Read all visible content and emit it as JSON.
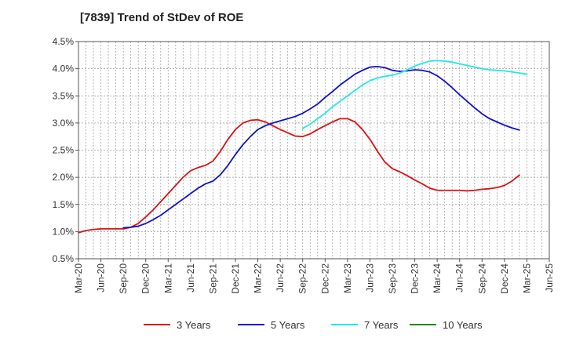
{
  "chart_data": {
    "type": "line",
    "title": "[7839]  Trend of StDev of ROE",
    "xlabel": "",
    "ylabel": "",
    "x_ticks": [
      "Mar-20",
      "Jun-20",
      "Sep-20",
      "Dec-20",
      "Mar-21",
      "Jun-21",
      "Sep-21",
      "Dec-21",
      "Mar-22",
      "Jun-22",
      "Sep-22",
      "Dec-22",
      "Mar-23",
      "Jun-23",
      "Sep-23",
      "Dec-23",
      "Mar-24",
      "Jun-24",
      "Sep-24",
      "Dec-24",
      "Mar-25",
      "Jun-25"
    ],
    "y_ticks": [
      "0.5%",
      "1.0%",
      "1.5%",
      "2.0%",
      "2.5%",
      "3.0%",
      "3.5%",
      "4.0%",
      "4.5%"
    ],
    "ylim": [
      0.5,
      4.5
    ],
    "grid": true,
    "legend_position": "bottom",
    "series": [
      {
        "name": "3 Years",
        "color": "#dd1111",
        "start_index": 0,
        "values": [
          0.98,
          1.02,
          1.04,
          1.05,
          1.05,
          1.05,
          1.05,
          1.08,
          1.15,
          1.27,
          1.4,
          1.55,
          1.7,
          1.85,
          2.0,
          2.12,
          2.18,
          2.22,
          2.3,
          2.48,
          2.7,
          2.88,
          3.0,
          3.05,
          3.06,
          3.02,
          2.95,
          2.88,
          2.82,
          2.76,
          2.75,
          2.8,
          2.88,
          2.95,
          3.02,
          3.08,
          3.08,
          3.02,
          2.88,
          2.7,
          2.48,
          2.28,
          2.16,
          2.1,
          2.03,
          1.95,
          1.88,
          1.8,
          1.76,
          1.76,
          1.76,
          1.76,
          1.75,
          1.76,
          1.78,
          1.79,
          1.81,
          1.85,
          1.93,
          2.04
        ]
      },
      {
        "name": "5 Years",
        "color": "#1111cc",
        "start_index": 6,
        "values": [
          1.07,
          1.08,
          1.1,
          1.15,
          1.22,
          1.3,
          1.4,
          1.5,
          1.6,
          1.7,
          1.8,
          1.88,
          1.93,
          2.05,
          2.22,
          2.42,
          2.6,
          2.75,
          2.88,
          2.95,
          3.0,
          3.04,
          3.08,
          3.12,
          3.18,
          3.26,
          3.35,
          3.47,
          3.58,
          3.7,
          3.8,
          3.9,
          3.97,
          4.03,
          4.04,
          4.02,
          3.97,
          3.95,
          3.96,
          3.98,
          3.97,
          3.94,
          3.87,
          3.77,
          3.65,
          3.52,
          3.4,
          3.28,
          3.17,
          3.08,
          3.02,
          2.96,
          2.91,
          2.87
        ]
      },
      {
        "name": "7 Years",
        "color": "#22e8e8",
        "start_index": 30,
        "values": [
          2.9,
          2.98,
          3.08,
          3.18,
          3.3,
          3.4,
          3.5,
          3.6,
          3.7,
          3.78,
          3.83,
          3.86,
          3.88,
          3.92,
          3.98,
          4.05,
          4.1,
          4.14,
          4.15,
          4.14,
          4.12,
          4.09,
          4.06,
          4.03,
          4.0,
          3.98,
          3.97,
          3.96,
          3.94,
          3.92,
          3.9
        ]
      },
      {
        "name": "10 Years",
        "color": "#228822",
        "start_index": 0,
        "values": []
      }
    ]
  }
}
